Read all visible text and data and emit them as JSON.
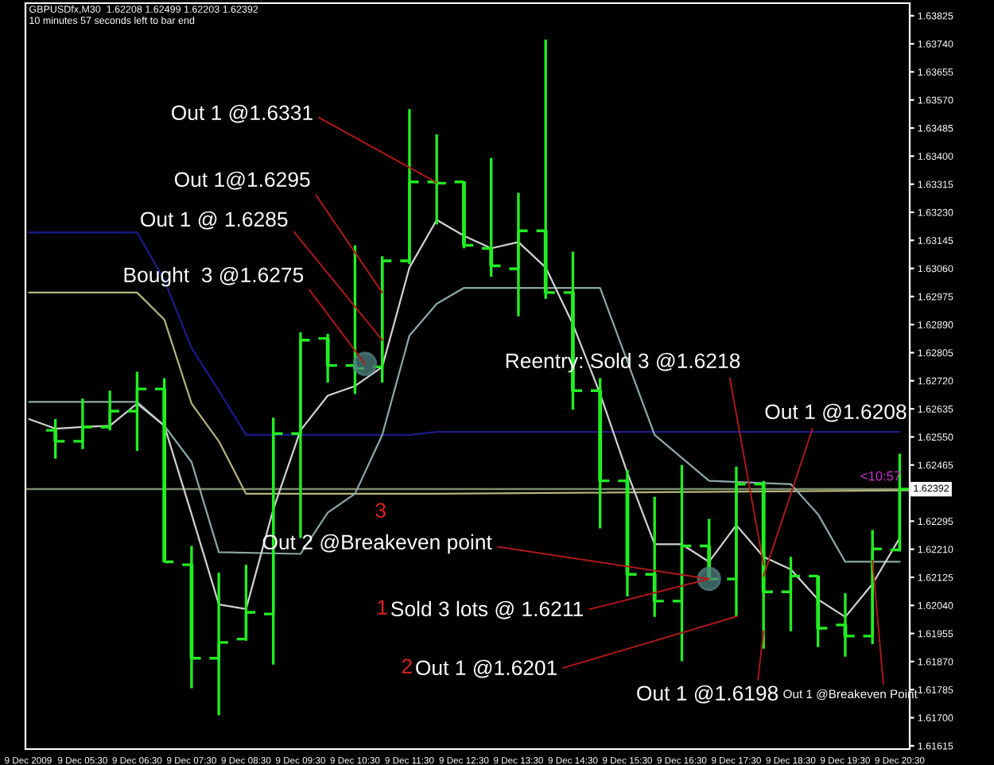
{
  "chart_data": {
    "type": "candlestick",
    "title": "GBPUSDfx,M30  1.62208 1.62499 1.62203 1.62392",
    "subtitle": "10 minutes 57 seconds left to bar end",
    "color": "#22ee22",
    "x": [
      "2009-12-09T05:00",
      "2009-12-09T05:30",
      "2009-12-09T06:00",
      "2009-12-09T06:30",
      "2009-12-09T07:00",
      "2009-12-09T07:30",
      "2009-12-09T08:00",
      "2009-12-09T08:30",
      "2009-12-09T09:00",
      "2009-12-09T09:30",
      "2009-12-09T10:00",
      "2009-12-09T10:30",
      "2009-12-09T11:00",
      "2009-12-09T11:30",
      "2009-12-09T12:00",
      "2009-12-09T12:30",
      "2009-12-09T13:00",
      "2009-12-09T13:30",
      "2009-12-09T14:00",
      "2009-12-09T14:30",
      "2009-12-09T15:00",
      "2009-12-09T15:30",
      "2009-12-09T16:00",
      "2009-12-09T16:30",
      "2009-12-09T17:00",
      "2009-12-09T17:30",
      "2009-12-09T18:00",
      "2009-12-09T18:30",
      "2009-12-09T19:00",
      "2009-12-09T19:30",
      "2009-12-09T20:00",
      "2009-12-09T20:30"
    ],
    "ohlc": [
      [
        1.6257,
        1.62604,
        1.62484,
        1.62537
      ],
      [
        1.62537,
        1.62666,
        1.62513,
        1.6258
      ],
      [
        1.6258,
        1.6269,
        1.6257,
        1.62628
      ],
      [
        1.62628,
        1.62747,
        1.62508,
        1.62695
      ],
      [
        1.62695,
        1.62728,
        1.62172,
        1.62172
      ],
      [
        1.62163,
        1.6222,
        1.61789,
        1.6188
      ],
      [
        1.6188,
        1.62139,
        1.61708,
        1.61928
      ],
      [
        1.61938,
        1.62163,
        1.61933,
        1.62019
      ],
      [
        1.62014,
        1.62608,
        1.61861,
        1.6256
      ],
      [
        1.6256,
        1.62867,
        1.62244,
        1.62843
      ],
      [
        1.62848,
        1.62862,
        1.62714,
        1.62766
      ],
      [
        1.62766,
        1.6313,
        1.6268,
        1.62757
      ],
      [
        1.62762,
        1.63097,
        1.62714,
        1.63083
      ],
      [
        1.63083,
        1.63542,
        1.63073,
        1.63322
      ],
      [
        1.63322,
        1.63466,
        1.63193,
        1.63318
      ],
      [
        1.63322,
        1.63322,
        1.63121,
        1.6313
      ],
      [
        1.63121,
        1.63394,
        1.63035,
        1.63068
      ],
      [
        1.63059,
        1.63289,
        1.62915,
        1.63174
      ],
      [
        1.63174,
        1.63753,
        1.62968,
        1.62987
      ],
      [
        1.62987,
        1.63111,
        1.62632,
        1.6269
      ],
      [
        1.6269,
        1.62728,
        1.62273,
        1.62417
      ],
      [
        1.62417,
        1.6245,
        1.62067,
        1.62134
      ],
      [
        1.62134,
        1.62369,
        1.62005,
        1.62053
      ],
      [
        1.62053,
        1.62465,
        1.61871,
        1.6222
      ],
      [
        1.6222,
        1.62302,
        1.62115,
        1.6212
      ],
      [
        1.6212,
        1.6246,
        1.62005,
        1.62407
      ],
      [
        1.62407,
        1.62417,
        1.61909,
        1.62081
      ],
      [
        1.62081,
        1.62187,
        1.61962,
        1.62129
      ],
      [
        1.62129,
        1.62129,
        1.61914,
        1.61971
      ],
      [
        1.61981,
        1.62077,
        1.61885,
        1.61947
      ],
      [
        1.61947,
        1.62268,
        1.61923,
        1.62211
      ],
      [
        1.62208,
        1.62499,
        1.62203,
        1.62392
      ]
    ],
    "series": [
      {
        "type": "line",
        "color": "#1c1c8a",
        "x": [
          "2009-12-09T04:31",
          "2009-12-09T06:30",
          "2009-12-09T07:00",
          "2009-12-09T07:30",
          "2009-12-09T08:00",
          "2009-12-09T08:30",
          "2009-12-09T11:30",
          "2009-12-09T12:00",
          "2009-12-09T20:30"
        ],
        "values": [
          1.63169,
          1.63169,
          1.63025,
          1.62819,
          1.6269,
          1.62556,
          1.62556,
          1.62565,
          1.62565
        ]
      },
      {
        "type": "line",
        "color": "#b4b47c",
        "x": [
          "2009-12-09T04:31",
          "2009-12-09T06:30",
          "2009-12-09T07:00",
          "2009-12-09T07:30",
          "2009-12-09T08:00",
          "2009-12-09T08:30",
          "2009-12-09T12:00",
          "2009-12-09T20:41"
        ],
        "values": [
          1.62987,
          1.62987,
          1.62905,
          1.62651,
          1.62537,
          1.62378,
          1.62378,
          1.62388
        ]
      },
      {
        "type": "line",
        "color": "#8ca8a8",
        "x": [
          "2009-12-09T04:31",
          "2009-12-09T06:30",
          "2009-12-09T07:00",
          "2009-12-09T07:30",
          "2009-12-09T08:00",
          "2009-12-09T09:30",
          "2009-12-09T10:00",
          "2009-12-09T10:30",
          "2009-12-09T11:00",
          "2009-12-09T11:30",
          "2009-12-09T12:00",
          "2009-12-09T12:30",
          "2009-12-09T15:00",
          "2009-12-09T16:00",
          "2009-12-09T17:00",
          "2009-12-09T18:30",
          "2009-12-09T19:00",
          "2009-12-09T19:30",
          "2009-12-09T20:30"
        ],
        "values": [
          1.62656,
          1.62656,
          1.62584,
          1.62474,
          1.62201,
          1.62196,
          1.62321,
          1.62378,
          1.62556,
          1.62857,
          1.62953,
          1.63001,
          1.63001,
          1.62556,
          1.62417,
          1.62407,
          1.62316,
          1.62172,
          1.62172
        ]
      },
      {
        "type": "line",
        "color": "#d2d2d2",
        "x": [
          "2009-12-09T04:31",
          "2009-12-09T05:00",
          "2009-12-09T05:30",
          "2009-12-09T06:00",
          "2009-12-09T06:30",
          "2009-12-09T07:00",
          "2009-12-09T07:30",
          "2009-12-09T08:00",
          "2009-12-09T08:30",
          "2009-12-09T09:00",
          "2009-12-09T09:30",
          "2009-12-09T10:00",
          "2009-12-09T10:30",
          "2009-12-09T11:00",
          "2009-12-09T11:30",
          "2009-12-09T12:00",
          "2009-12-09T12:30",
          "2009-12-09T13:00",
          "2009-12-09T13:30",
          "2009-12-09T14:00",
          "2009-12-09T14:30",
          "2009-12-09T15:00",
          "2009-12-09T15:30",
          "2009-12-09T16:00",
          "2009-12-09T16:30",
          "2009-12-09T17:00",
          "2009-12-09T17:30",
          "2009-12-09T18:00",
          "2009-12-09T18:30",
          "2009-12-09T19:00",
          "2009-12-09T19:30",
          "2009-12-09T20:00",
          "2009-12-09T20:30"
        ],
        "values": [
          1.62604,
          1.62575,
          1.6258,
          1.62584,
          1.62651,
          1.62584,
          1.62316,
          1.62043,
          1.62029,
          1.62331,
          1.6257,
          1.62675,
          1.62704,
          1.62762,
          1.63063,
          1.63207,
          1.63159,
          1.63121,
          1.6314,
          1.63063,
          1.62891,
          1.6268,
          1.62441,
          1.62225,
          1.62225,
          1.62172,
          1.62283,
          1.62187,
          1.62149,
          1.62058,
          1.62005,
          1.62105,
          1.62244
        ]
      }
    ],
    "ref_lines": [
      {
        "axis": "y",
        "value": 1.62392,
        "label": "1.62392",
        "color": "#7c8c6c"
      }
    ],
    "annotations": [
      {
        "text": "Out 1 @1.6331",
        "x": "2009-12-09T12:00",
        "y": 1.6332
      },
      {
        "text": "Out 1@1.6295",
        "x": "2009-12-09T11:00",
        "y": 1.62987
      },
      {
        "text": "Out 1 @ 1.6285",
        "x": "2009-12-09T11:00",
        "y": 1.62843
      },
      {
        "text": "Bought  3 @1.6275",
        "x": "2009-12-09T10:41",
        "y": 1.62771
      },
      "3",
      {
        "text": "Out 2 @Breakeven point",
        "x": "2009-12-09T17:00",
        "y": 1.6212
      },
      "1",
      {
        "text": "Sold 3 lots @ 1.6211",
        "x": "2009-12-09T17:00",
        "y": 1.6212
      },
      "2",
      {
        "text": "Out 1 @1.6201",
        "x": "2009-12-09T17:31",
        "y": 1.62007
      },
      {
        "text": "Reentry: Sold 3 @1.6218",
        "x": "2009-12-09T18:00",
        "y": 1.62163
      },
      {
        "text": "Out 1 @1.6208",
        "x": "2009-12-09T18:00",
        "y": 1.62129
      },
      {
        "text": "Out 1 @1.6198",
        "x": "2009-12-09T18:00",
        "y": 1.61962
      },
      {
        "text": "Out 1 @Breakeven Point",
        "x": "2009-12-09T20:00",
        "y": 1.62176
      },
      "<10:57"
    ],
    "xlim": [
      "2009-12-09T04:27",
      "2009-12-09T20:41"
    ],
    "ylim": [
      1.61605,
      1.63863
    ],
    "xticks": [
      {
        "value": "2009-12-09T04:30",
        "label": "9 Dec 2009"
      },
      {
        "value": "2009-12-09T05:30",
        "label": "9 Dec 05:30"
      },
      {
        "value": "2009-12-09T06:30",
        "label": "9 Dec 06:30"
      },
      {
        "value": "2009-12-09T07:30",
        "label": "9 Dec 07:30"
      },
      {
        "value": "2009-12-09T08:30",
        "label": "9 Dec 08:30"
      },
      {
        "value": "2009-12-09T09:30",
        "label": "9 Dec 09:30"
      },
      {
        "value": "2009-12-09T10:30",
        "label": "9 Dec 10:30"
      },
      {
        "value": "2009-12-09T11:30",
        "label": "9 Dec 11:30"
      },
      {
        "value": "2009-12-09T12:30",
        "label": "9 Dec 12:30"
      },
      {
        "value": "2009-12-09T13:30",
        "label": "9 Dec 13:30"
      },
      {
        "value": "2009-12-09T14:30",
        "label": "9 Dec 14:30"
      },
      {
        "value": "2009-12-09T15:30",
        "label": "9 Dec 15:30"
      },
      {
        "value": "2009-12-09T16:30",
        "label": "9 Dec 16:30"
      },
      {
        "value": "2009-12-09T17:30",
        "label": "9 Dec 17:30"
      },
      {
        "value": "2009-12-09T18:30",
        "label": "9 Dec 18:30"
      },
      {
        "value": "2009-12-09T19:30",
        "label": "9 Dec 19:30"
      },
      {
        "value": "2009-12-09T20:30",
        "label": "9 Dec 20:30"
      }
    ],
    "yticks": [
      1.61615,
      {
        "value": 1.617,
        "label": "1.61700"
      },
      1.61785,
      {
        "value": 1.6187,
        "label": "1.61870"
      },
      1.61955,
      {
        "value": 1.6204,
        "label": "1.62040"
      },
      1.62125,
      {
        "value": 1.6221,
        "label": "1.62210"
      },
      1.62295,
      {
        "value": 1.6238,
        "label": null
      },
      1.62465,
      {
        "value": 1.6255,
        "label": "1.62550"
      },
      1.62635,
      {
        "value": 1.6272,
        "label": "1.62720"
      },
      1.62805,
      {
        "value": 1.6289,
        "label": "1.62890"
      },
      1.62975,
      {
        "value": 1.6306,
        "label": "1.63060"
      },
      1.63145,
      {
        "value": 1.6323,
        "label": "1.63230"
      },
      1.63315,
      {
        "value": 1.634,
        "label": "1.63400"
      },
      1.63485,
      {
        "value": 1.6357,
        "label": "1.63570"
      },
      1.63655,
      {
        "value": 1.6374,
        "label": "1.63740"
      },
      1.63825
    ]
  }
}
